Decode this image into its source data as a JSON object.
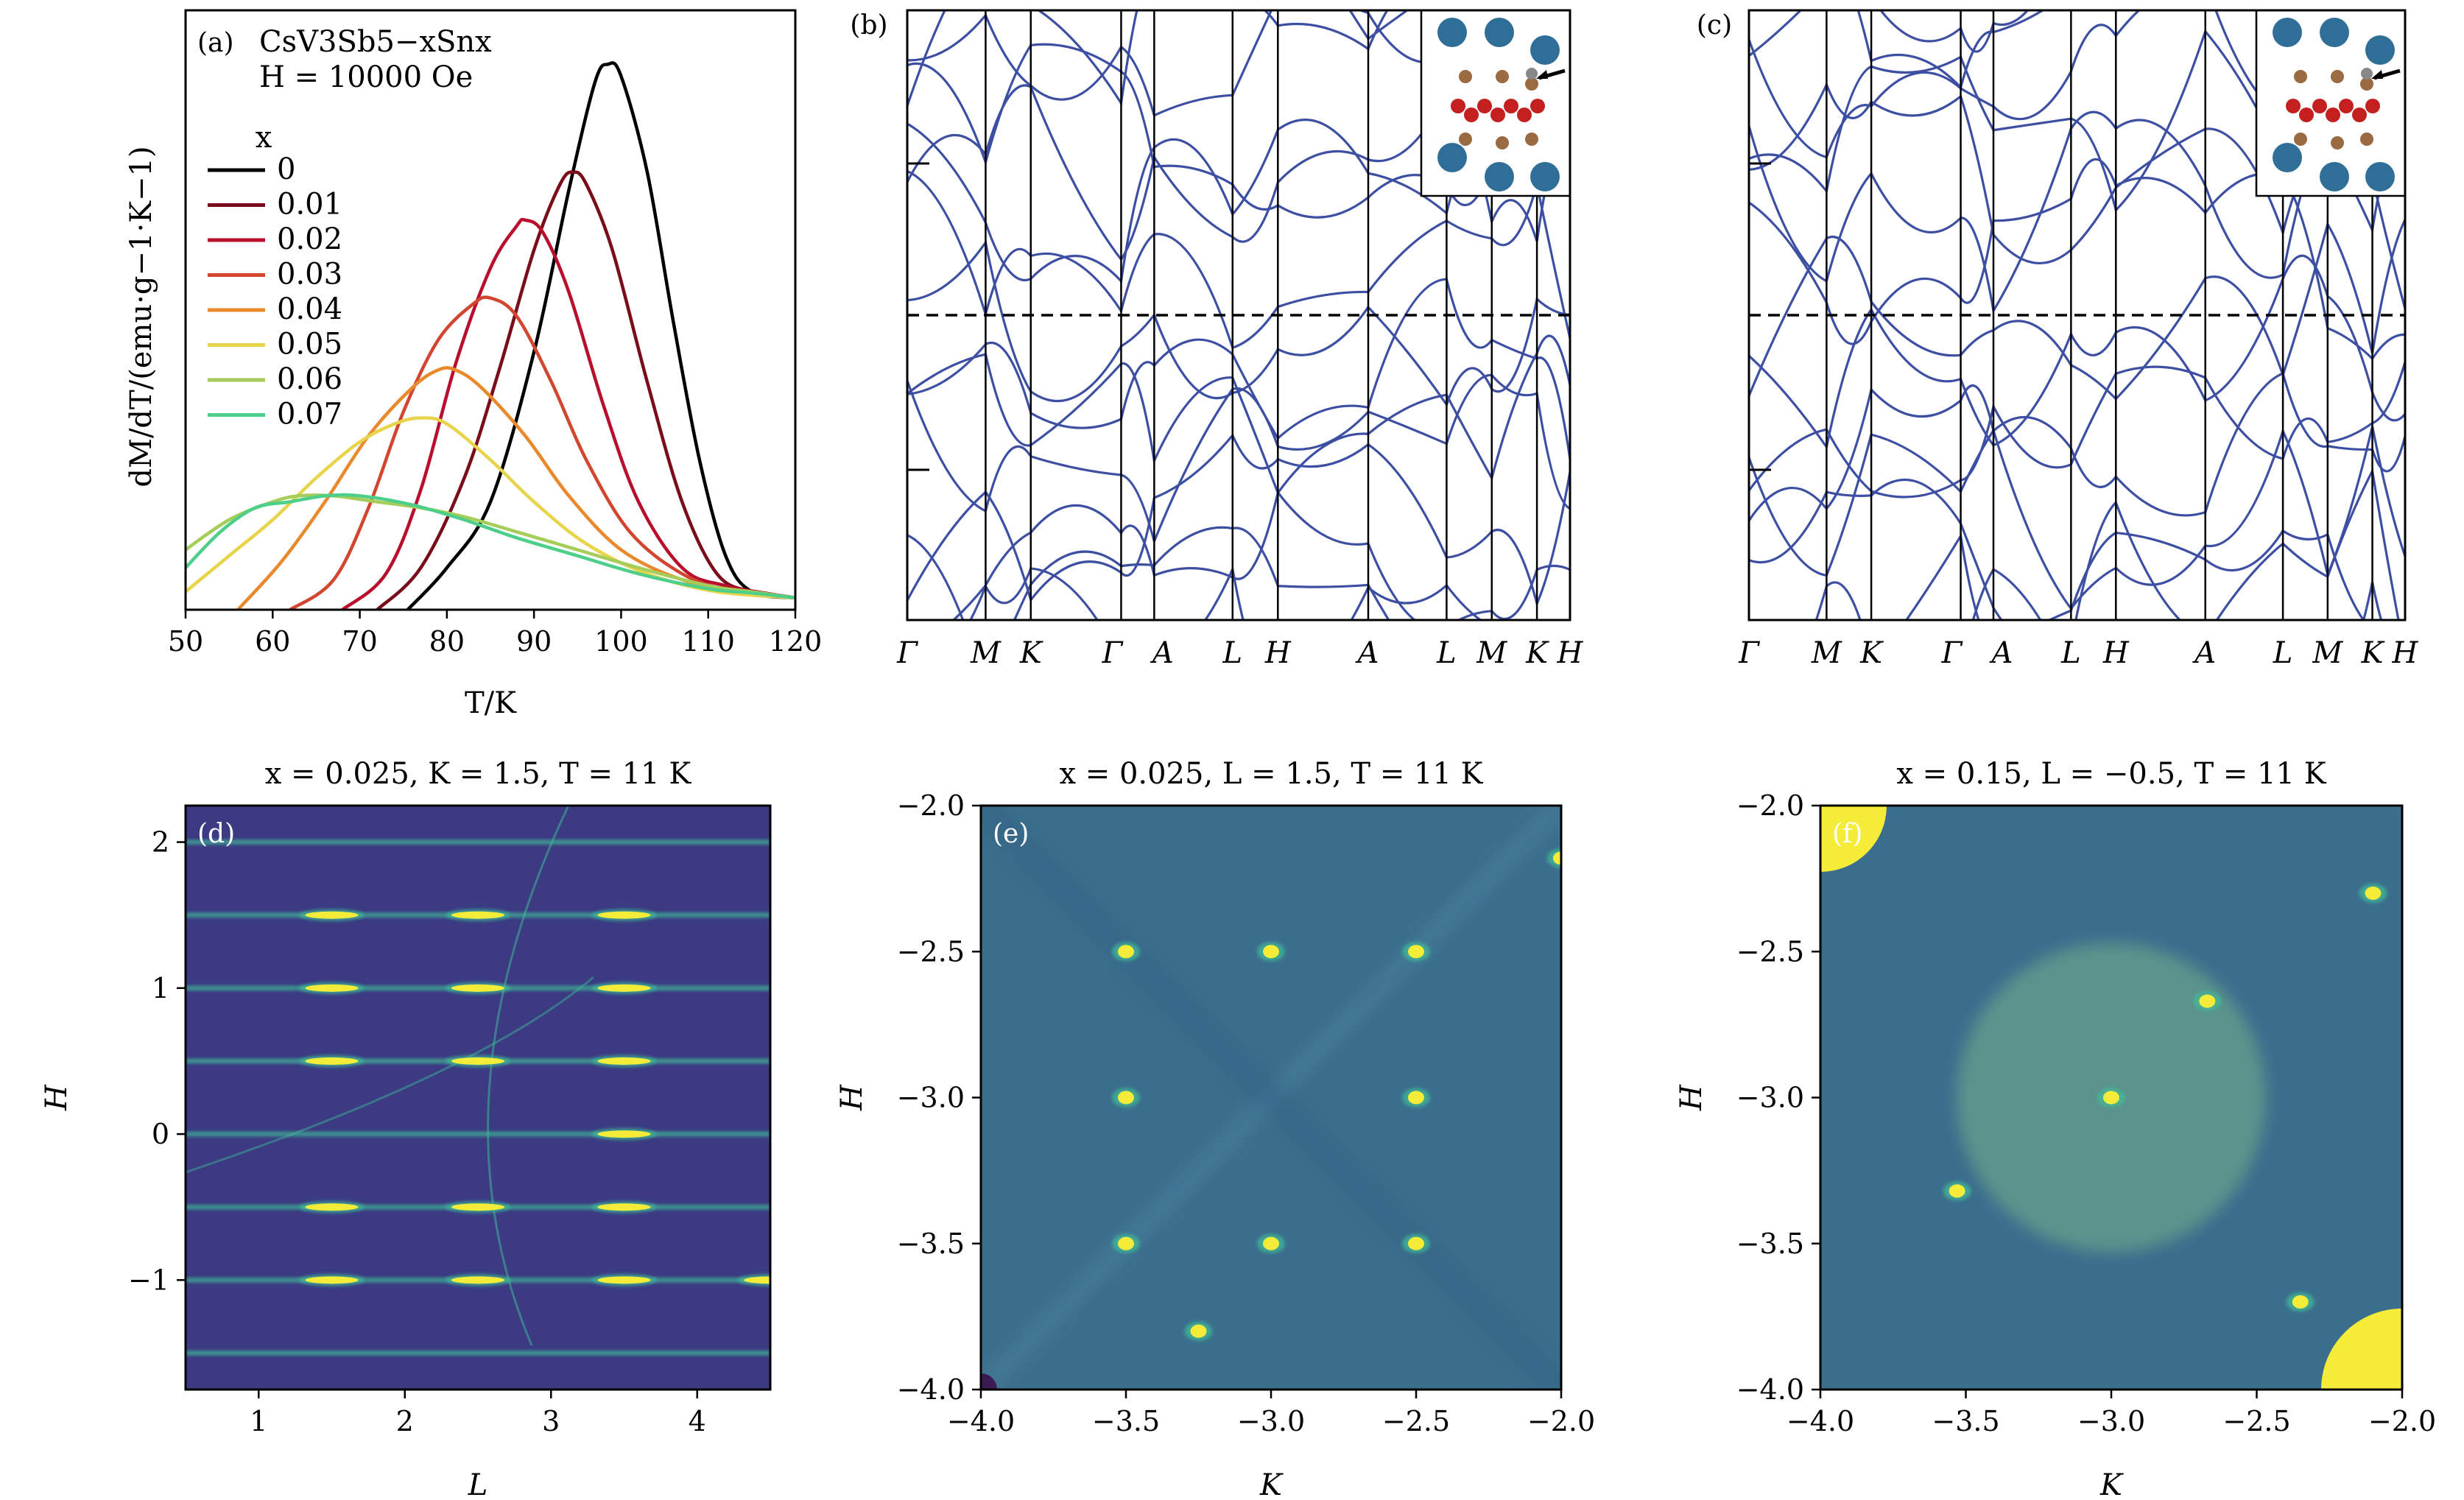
{
  "figure": {
    "panel_letters": [
      "(a)",
      "(b)",
      "(c)",
      "(d)",
      "(e)",
      "(f)"
    ]
  },
  "colors": {
    "band": "#3d4fa3",
    "map_background": "#3b6e8d",
    "map_background_dark": "#3b3a82",
    "peak": "#f4ec38",
    "peak_mid": "#3fbf98",
    "legend_colors": [
      "#000000",
      "#7a0d1a",
      "#b8102c",
      "#d2452f",
      "#e9892b",
      "#e8d44a",
      "#a6cd59",
      "#4dcf8a"
    ]
  },
  "chart_data": [
    {
      "panel": "(a)",
      "type": "line",
      "title_line1": "CsV3Sb5−xSnx",
      "title_line2": "H = 10000 Oe",
      "legend_title": "x",
      "xlabel": "T/K",
      "ylabel": "dM/dT/(emu·g−1·K−1)",
      "xlim": [
        50,
        120
      ],
      "ylim": [
        0,
        1
      ],
      "xticks": [
        "50",
        "60",
        "70",
        "80",
        "90",
        "100",
        "110",
        "120"
      ],
      "series": [
        {
          "name": "0",
          "values": [
            [
              75.5,
              0.0
            ],
            [
              80,
              0.07
            ],
            [
              85,
              0.18
            ],
            [
              90,
              0.43
            ],
            [
              94,
              0.7
            ],
            [
              97,
              0.88
            ],
            [
              98.5,
              0.91
            ],
            [
              100,
              0.89
            ],
            [
              103,
              0.73
            ],
            [
              106,
              0.48
            ],
            [
              109,
              0.25
            ],
            [
              112,
              0.09
            ],
            [
              115,
              0.03
            ],
            [
              120,
              0.02
            ]
          ]
        },
        {
          "name": "0.01",
          "values": [
            [
              72,
              0.0
            ],
            [
              77,
              0.07
            ],
            [
              82,
              0.22
            ],
            [
              86,
              0.4
            ],
            [
              90,
              0.6
            ],
            [
              93,
              0.71
            ],
            [
              94.5,
              0.73
            ],
            [
              96,
              0.71
            ],
            [
              99,
              0.6
            ],
            [
              103,
              0.38
            ],
            [
              107,
              0.18
            ],
            [
              111,
              0.06
            ],
            [
              115,
              0.03
            ],
            [
              120,
              0.02
            ]
          ]
        },
        {
          "name": "0.02",
          "values": [
            [
              68,
              0.0
            ],
            [
              73,
              0.06
            ],
            [
              77,
              0.2
            ],
            [
              81,
              0.41
            ],
            [
              85,
              0.57
            ],
            [
              88,
              0.64
            ],
            [
              89,
              0.65
            ],
            [
              91,
              0.63
            ],
            [
              94,
              0.53
            ],
            [
              98,
              0.34
            ],
            [
              102,
              0.18
            ],
            [
              107,
              0.07
            ],
            [
              112,
              0.04
            ],
            [
              120,
              0.02
            ]
          ]
        },
        {
          "name": "0.03",
          "values": [
            [
              62,
              0.0
            ],
            [
              67,
              0.05
            ],
            [
              71,
              0.17
            ],
            [
              75,
              0.33
            ],
            [
              79,
              0.45
            ],
            [
              83,
              0.51
            ],
            [
              85,
              0.52
            ],
            [
              88,
              0.49
            ],
            [
              92,
              0.38
            ],
            [
              96,
              0.25
            ],
            [
              101,
              0.13
            ],
            [
              107,
              0.06
            ],
            [
              113,
              0.03
            ],
            [
              120,
              0.02
            ]
          ]
        },
        {
          "name": "0.04",
          "values": [
            [
              56,
              0.0
            ],
            [
              61,
              0.08
            ],
            [
              66,
              0.18
            ],
            [
              71,
              0.29
            ],
            [
              76,
              0.37
            ],
            [
              79,
              0.4
            ],
            [
              81,
              0.4
            ],
            [
              84,
              0.37
            ],
            [
              89,
              0.29
            ],
            [
              94,
              0.19
            ],
            [
              100,
              0.1
            ],
            [
              107,
              0.05
            ],
            [
              114,
              0.03
            ],
            [
              120,
              0.02
            ]
          ]
        },
        {
          "name": "0.05",
          "values": [
            [
              50,
              0.03
            ],
            [
              55,
              0.09
            ],
            [
              60,
              0.15
            ],
            [
              65,
              0.22
            ],
            [
              70,
              0.28
            ],
            [
              74,
              0.31
            ],
            [
              77,
              0.32
            ],
            [
              80,
              0.31
            ],
            [
              85,
              0.25
            ],
            [
              90,
              0.18
            ],
            [
              96,
              0.11
            ],
            [
              103,
              0.06
            ],
            [
              111,
              0.03
            ],
            [
              120,
              0.02
            ]
          ]
        },
        {
          "name": "0.06",
          "values": [
            [
              50,
              0.1
            ],
            [
              55,
              0.15
            ],
            [
              60,
              0.18
            ],
            [
              63,
              0.19
            ],
            [
              67,
              0.19
            ],
            [
              72,
              0.18
            ],
            [
              77,
              0.17
            ],
            [
              82,
              0.155
            ],
            [
              88,
              0.13
            ],
            [
              95,
              0.1
            ],
            [
              102,
              0.07
            ],
            [
              110,
              0.04
            ],
            [
              115,
              0.03
            ],
            [
              120,
              0.02
            ]
          ]
        },
        {
          "name": "0.07",
          "values": [
            [
              50,
              0.07
            ],
            [
              54,
              0.13
            ],
            [
              58,
              0.17
            ],
            [
              62,
              0.18
            ],
            [
              66,
              0.19
            ],
            [
              70,
              0.19
            ],
            [
              76,
              0.175
            ],
            [
              82,
              0.15
            ],
            [
              88,
              0.12
            ],
            [
              95,
              0.09
            ],
            [
              102,
              0.06
            ],
            [
              110,
              0.035
            ],
            [
              115,
              0.028
            ],
            [
              120,
              0.02
            ]
          ]
        }
      ]
    },
    {
      "panel": "(b)",
      "type": "line",
      "description": "electronic band structure",
      "kpoints": [
        "Γ",
        "M",
        "K",
        "Γ",
        "A",
        "L",
        "H",
        "A",
        "L",
        "M",
        "K",
        "H"
      ],
      "kpoint_positions": [
        0,
        0.576,
        0.908,
        1.572,
        1.815,
        2.391,
        2.724,
        3.388,
        3.964,
        4.296,
        4.628,
        4.871
      ],
      "fermi_level": 0
    },
    {
      "panel": "(c)",
      "type": "line",
      "description": "electronic band structure",
      "kpoints": [
        "Γ",
        "M",
        "K",
        "Γ",
        "A",
        "L",
        "H",
        "A",
        "L",
        "M",
        "K",
        "H"
      ],
      "kpoint_positions": [
        0,
        0.576,
        0.908,
        1.572,
        1.815,
        2.391,
        2.724,
        3.388,
        3.964,
        4.296,
        4.628,
        4.871
      ],
      "fermi_level": 0
    },
    {
      "panel": "(d)",
      "type": "heatmap",
      "title": "x = 0.025, K = 1.5, T = 11 K",
      "xlabel": "L",
      "ylabel": "H",
      "xlim": [
        0.5,
        4.5
      ],
      "ylim": [
        -1.75,
        2.25
      ],
      "xticks": [
        "1",
        "2",
        "3",
        "4"
      ],
      "yticks": [
        "2",
        "1",
        "0",
        "−1"
      ],
      "stripes_H": [
        2,
        1.5,
        1,
        0.5,
        0,
        -0.5,
        -1,
        -1.5
      ],
      "peaks": [
        [
          1.5,
          1.5
        ],
        [
          2.5,
          1.5
        ],
        [
          3.5,
          1.5
        ],
        [
          1.5,
          1
        ],
        [
          2.5,
          1
        ],
        [
          3.5,
          1
        ],
        [
          1.5,
          0.5
        ],
        [
          2.5,
          0.5
        ],
        [
          3.5,
          0.5
        ],
        [
          3.5,
          0
        ],
        [
          1.5,
          -0.5
        ],
        [
          2.5,
          -0.5
        ],
        [
          3.5,
          -0.5
        ],
        [
          1.5,
          -1
        ],
        [
          2.5,
          -1
        ],
        [
          3.5,
          -1
        ],
        [
          4.5,
          -1
        ]
      ]
    },
    {
      "panel": "(e)",
      "type": "heatmap",
      "title": "x = 0.025, L = 1.5, T = 11 K",
      "xlabel": "K",
      "ylabel": "H",
      "xlim": [
        -4.0,
        -2.0
      ],
      "ylim": [
        -4.0,
        -2.0
      ],
      "xticks": [
        "−4.0",
        "−3.5",
        "−3.0",
        "−2.5",
        "−2.0"
      ],
      "yticks": [
        "−2.0",
        "−2.5",
        "−3.0",
        "−3.5",
        "−4.0"
      ],
      "peaks": [
        [
          -3.5,
          -2.5
        ],
        [
          -3.0,
          -2.5
        ],
        [
          -2.5,
          -2.5
        ],
        [
          -3.5,
          -3.0
        ],
        [
          -2.5,
          -3.0
        ],
        [
          -3.5,
          -3.5
        ],
        [
          -3.0,
          -3.5
        ],
        [
          -2.5,
          -3.5
        ],
        [
          -3.25,
          -3.8
        ],
        [
          -2.0,
          -2.18
        ]
      ]
    },
    {
      "panel": "(f)",
      "type": "heatmap",
      "title": "x = 0.15, L = −0.5, T = 11 K",
      "xlabel": "K",
      "ylabel": "H",
      "xlim": [
        -4.0,
        -2.0
      ],
      "ylim": [
        -4.0,
        -2.0
      ],
      "xticks": [
        "−4.0",
        "−3.5",
        "−3.0",
        "−2.5",
        "−2.0"
      ],
      "yticks": [
        "−2.0",
        "−2.5",
        "−3.0",
        "−3.5",
        "−4.0"
      ],
      "peaks": [
        [
          -3.0,
          -3.0
        ],
        [
          -2.67,
          -2.67
        ],
        [
          -3.53,
          -3.32
        ],
        [
          -2.35,
          -3.7
        ],
        [
          -2.1,
          -2.3
        ]
      ]
    }
  ]
}
